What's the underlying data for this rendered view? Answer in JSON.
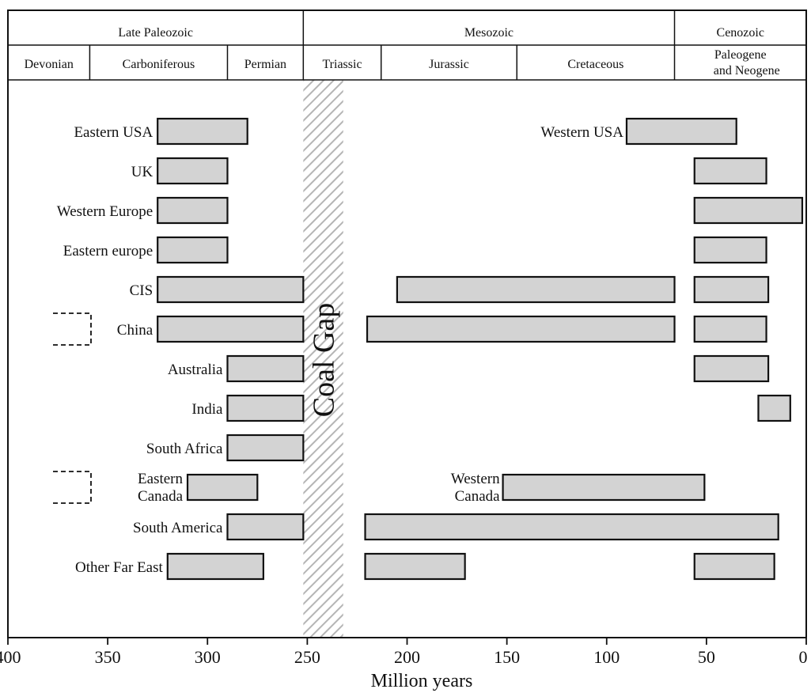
{
  "chart_data": {
    "type": "bar",
    "orientation": "horizontal-range",
    "xlabel": "Million years",
    "x_reversed": true,
    "xlim": [
      400,
      0
    ],
    "xticks": [
      400,
      350,
      300,
      250,
      200,
      150,
      100,
      50,
      0
    ],
    "eras": [
      {
        "label": "Late Paleozoic",
        "start": 400,
        "end": 252
      },
      {
        "label": "Mesozoic",
        "start": 252,
        "end": 66
      },
      {
        "label": "Cenozoic",
        "start": 66,
        "end": 0
      }
    ],
    "periods": [
      {
        "lines": [
          "Devonian"
        ],
        "start": 400,
        "end": 359
      },
      {
        "lines": [
          "Carboniferous"
        ],
        "start": 359,
        "end": 290
      },
      {
        "lines": [
          "Permian"
        ],
        "start": 290,
        "end": 252
      },
      {
        "lines": [
          "Triassic"
        ],
        "start": 252,
        "end": 213
      },
      {
        "lines": [
          "Jurassic"
        ],
        "start": 213,
        "end": 145
      },
      {
        "lines": [
          "Cretaceous"
        ],
        "start": 145,
        "end": 66
      },
      {
        "lines": [
          "Paleogene",
          "and Neogene"
        ],
        "start": 66,
        "end": 0
      }
    ],
    "coal_gap": {
      "label": "Coal Gap",
      "start": 252,
      "end": 232
    },
    "rows": [
      {
        "label": [
          "Eastern USA"
        ],
        "ranges": [
          [
            325,
            280
          ]
        ]
      },
      {
        "label": [
          "UK"
        ],
        "ranges": [
          [
            325,
            290
          ]
        ],
        "cenozoic": [
          [
            56,
            20
          ]
        ]
      },
      {
        "label": [
          "Western Europe"
        ],
        "ranges": [
          [
            325,
            290
          ]
        ],
        "cenozoic": [
          [
            56,
            2
          ]
        ]
      },
      {
        "label": [
          "Eastern europe"
        ],
        "ranges": [
          [
            325,
            290
          ]
        ],
        "cenozoic": [
          [
            56,
            20
          ]
        ]
      },
      {
        "label": [
          "CIS"
        ],
        "ranges": [
          [
            325,
            252
          ],
          [
            205,
            66
          ]
        ],
        "cenozoic": [
          [
            56,
            19
          ]
        ]
      },
      {
        "label": [
          "China"
        ],
        "dashed_box": true,
        "ranges": [
          [
            325,
            252
          ],
          [
            220,
            66
          ]
        ],
        "cenozoic": [
          [
            56,
            20
          ]
        ]
      },
      {
        "label": [
          "Australia"
        ],
        "ranges": [
          [
            290,
            252
          ]
        ],
        "cenozoic": [
          [
            56,
            19
          ]
        ]
      },
      {
        "label": [
          "India"
        ],
        "ranges": [
          [
            290,
            252
          ]
        ],
        "cenozoic": [
          [
            24,
            8
          ]
        ]
      },
      {
        "label": [
          "South Africa"
        ],
        "ranges": [
          [
            290,
            252
          ]
        ]
      },
      {
        "label": [
          "Eastern",
          "Canada"
        ],
        "dashed_box": true,
        "ranges": [
          [
            310,
            275
          ]
        ]
      },
      {
        "label": [
          "South America"
        ],
        "ranges": [
          [
            290,
            252
          ],
          [
            221,
            14
          ]
        ]
      },
      {
        "label": [
          "Other Far East"
        ],
        "ranges": [
          [
            320,
            272
          ],
          [
            221,
            171
          ]
        ],
        "cenozoic": [
          [
            56,
            16
          ]
        ]
      }
    ],
    "inline_labels": [
      {
        "row": 0,
        "lines": [
          "Western USA"
        ],
        "range": [
          90,
          35
        ]
      },
      {
        "row": 9,
        "lines": [
          "Western",
          "Canada"
        ],
        "range": [
          152,
          51
        ]
      }
    ],
    "bar_fill": "#d3d3d3",
    "bar_stroke": "#111111",
    "gap_stripe": "#b5b5b5"
  }
}
